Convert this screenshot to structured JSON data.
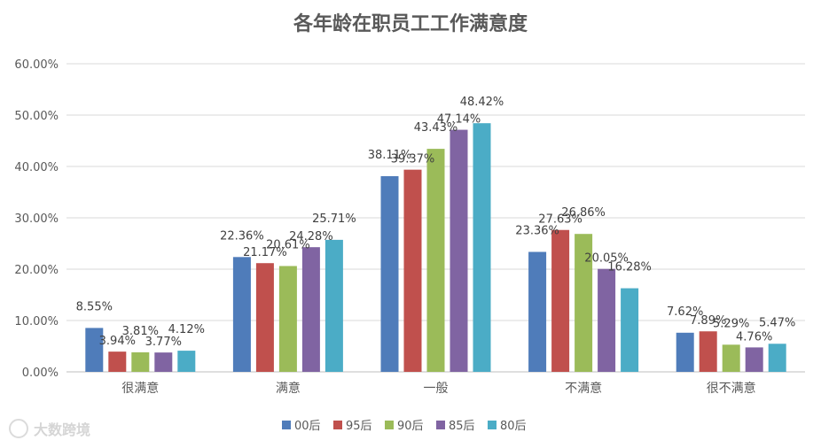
{
  "chart_data": {
    "type": "bar",
    "title": "各年龄在职员工工作满意度",
    "xlabel": "",
    "ylabel": "",
    "categories": [
      "很满意",
      "满意",
      "一般",
      "不满意",
      "很不满意"
    ],
    "series": [
      {
        "name": "00后",
        "color": "#4F7CBA",
        "values": [
          8.55,
          22.36,
          38.11,
          23.36,
          7.62
        ],
        "labels": [
          "8.55%",
          "22.36%",
          "38.11%",
          "23.36%",
          "7.62%"
        ]
      },
      {
        "name": "95后",
        "color": "#C0504D",
        "values": [
          3.94,
          21.17,
          39.37,
          27.63,
          7.89
        ],
        "labels": [
          "3.94%",
          "21.17%",
          "39.37%",
          "27.63%",
          "7.89%"
        ]
      },
      {
        "name": "90后",
        "color": "#9BBB59",
        "values": [
          3.81,
          20.61,
          43.43,
          26.86,
          5.29
        ],
        "labels": [
          "3.81%",
          "20.61%",
          "43.43%",
          "26.86%",
          "5.29%"
        ]
      },
      {
        "name": "85后",
        "color": "#8064A2",
        "values": [
          3.77,
          24.28,
          47.14,
          20.05,
          4.76
        ],
        "labels": [
          "3.77%",
          "24.28%",
          "47.14%",
          "20.05%",
          "4.76%"
        ]
      },
      {
        "name": "80后",
        "color": "#4BACC6",
        "values": [
          4.12,
          25.71,
          48.42,
          16.28,
          5.47
        ],
        "labels": [
          "4.12%",
          "25.71%",
          "48.42%",
          "16.28%",
          "5.47%"
        ]
      }
    ],
    "ylim": [
      0,
      60
    ],
    "yticks": [
      0,
      10,
      20,
      30,
      40,
      50,
      60
    ],
    "ytick_labels": [
      "0.00%",
      "10.00%",
      "20.00%",
      "30.00%",
      "40.00%",
      "50.00%",
      "60.00%"
    ],
    "grid": true,
    "legend_position": "bottom"
  },
  "watermark": {
    "text": "大数跨境"
  }
}
